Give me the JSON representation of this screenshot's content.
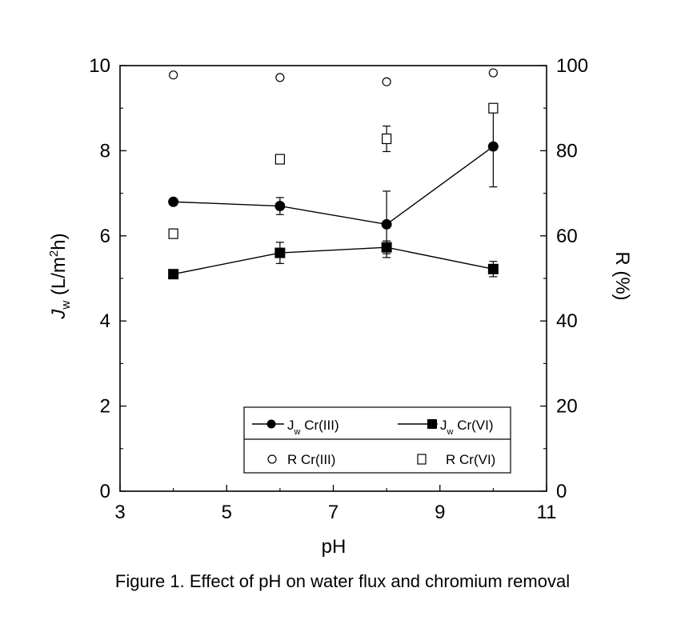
{
  "chart_data": {
    "type": "scatter",
    "caption": "Figure 1. Effect of pH on water flux and chromium removal",
    "xlabel": "pH",
    "ylabel_left": "J_w (L/m^2h)",
    "ylabel_right": "R (%)",
    "xlim": [
      3,
      11
    ],
    "ylim_left": [
      0,
      10
    ],
    "ylim_right": [
      0,
      100
    ],
    "xticks": [
      "3",
      "5",
      "7",
      "9",
      "11"
    ],
    "yticks_left": [
      "0",
      "2",
      "4",
      "6",
      "8",
      "10"
    ],
    "yticks_right": [
      "0",
      "20",
      "40",
      "60",
      "80",
      "100"
    ],
    "grid": false,
    "legend": {
      "placement": "bottom-right",
      "items": [
        "J",
        "J",
        "R Cr(III)",
        "R Cr(VI)"
      ],
      "subscripts": [
        "w",
        "w"
      ],
      "suffixes": [
        "Cr(III)",
        "Cr(VI)"
      ]
    },
    "series": [
      {
        "key": "jw_cr3",
        "axis": "left",
        "marker": "filled-circle",
        "line": true,
        "x": [
          4,
          6,
          8,
          10
        ],
        "y": [
          6.8,
          6.7,
          6.27,
          8.1
        ],
        "yerr": [
          0.05,
          0.2,
          0.78,
          0.95
        ]
      },
      {
        "key": "jw_cr6",
        "axis": "left",
        "marker": "filled-square",
        "line": true,
        "x": [
          4,
          6,
          8,
          10
        ],
        "y": [
          5.1,
          5.6,
          5.73,
          5.22
        ],
        "yerr": [
          0.05,
          0.25,
          0.15,
          0.18
        ]
      },
      {
        "key": "r_cr3",
        "axis": "right",
        "marker": "open-circle",
        "line": false,
        "x": [
          4,
          6,
          8,
          10
        ],
        "y": [
          97.8,
          97.2,
          96.2,
          98.3
        ],
        "yerr": [
          0.3,
          0.3,
          0.3,
          0.3
        ]
      },
      {
        "key": "r_cr6",
        "axis": "right",
        "marker": "open-square",
        "line": false,
        "x": [
          4,
          6,
          8,
          10
        ],
        "y": [
          60.5,
          78.0,
          82.8,
          90.0
        ],
        "yerr": [
          0.8,
          1.0,
          3.0,
          0.8
        ]
      }
    ]
  }
}
